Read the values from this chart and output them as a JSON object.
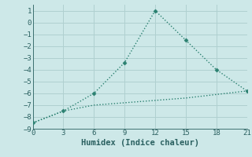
{
  "xlabel": "Humidex (Indice chaleur)",
  "bg_color": "#cde8e8",
  "grid_color": "#b0d0d0",
  "line1_x": [
    0,
    3,
    6,
    9,
    12,
    15,
    18,
    21
  ],
  "line1_y": [
    -8.5,
    -7.5,
    -6.0,
    -3.4,
    1.0,
    -1.5,
    -4.0,
    -5.8
  ],
  "line2_x": [
    0,
    3,
    6,
    9,
    12,
    15,
    18,
    21
  ],
  "line2_y": [
    -8.5,
    -7.5,
    -7.0,
    -6.8,
    -6.6,
    -6.4,
    -6.1,
    -5.8
  ],
  "line_color": "#2a8070",
  "marker": "D",
  "marker_size": 2.5,
  "xlim": [
    0,
    21
  ],
  "ylim": [
    -9,
    1.5
  ],
  "xticks": [
    0,
    3,
    6,
    9,
    12,
    15,
    18,
    21
  ],
  "yticks": [
    -9,
    -8,
    -7,
    -6,
    -5,
    -4,
    -3,
    -2,
    -1,
    0,
    1
  ],
  "tick_color": "#2a6060",
  "tick_fontsize": 6.5,
  "xlabel_fontsize": 7.5
}
